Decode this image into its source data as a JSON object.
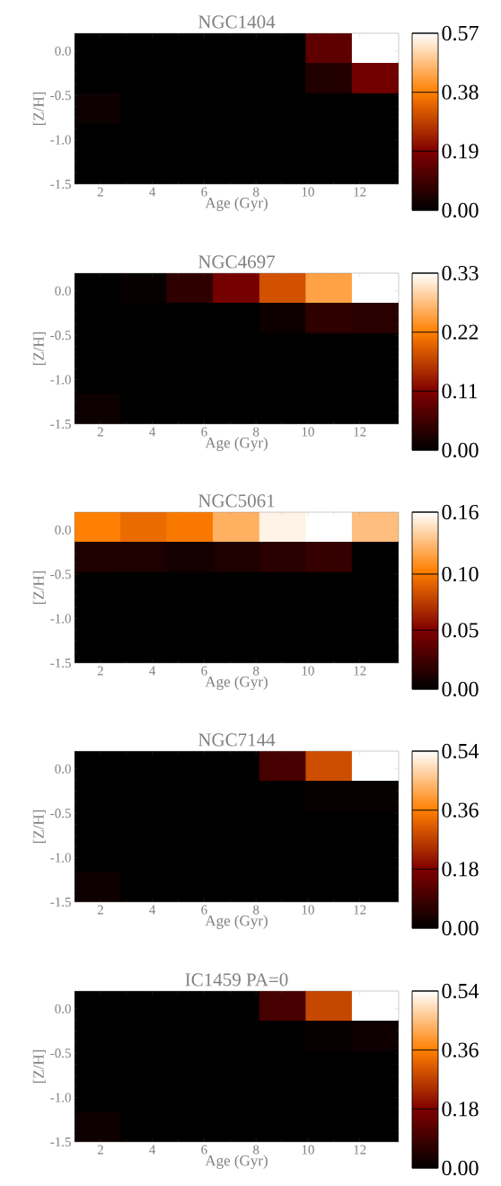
{
  "chart_data": [
    {
      "type": "heatmap",
      "title": "NGC1404",
      "xlabel": "Age (Gyr)",
      "ylabel": "[Z/H]",
      "x": [
        1.89,
        3.68,
        5.46,
        7.25,
        9.04,
        10.82,
        12.61
      ],
      "y": [
        0.03,
        -0.31,
        -0.65,
        -0.99,
        -1.33
      ],
      "xlim": [
        1,
        13.5
      ],
      "xticks": [
        2,
        4,
        6,
        8,
        10,
        12
      ],
      "ylim": [
        -1.5,
        0.2
      ],
      "yticks": [
        {
          "value": 0,
          "label": "0.0"
        },
        {
          "value": -0.5,
          "label": "-0.5"
        },
        {
          "value": -1,
          "label": "-1.0"
        },
        {
          "value": -1.5,
          "label": "-1.5"
        }
      ],
      "cells": [
        [
          0,
          0,
          0,
          0,
          0,
          0.14,
          0.57
        ],
        [
          0,
          0,
          0,
          0,
          0,
          0.05,
          0.17
        ],
        [
          0.02,
          0,
          0,
          0,
          0,
          0,
          0
        ],
        [
          0,
          0,
          0,
          0,
          0,
          0,
          0
        ],
        [
          0,
          0,
          0,
          0,
          0,
          0,
          0
        ]
      ],
      "clim": [
        0,
        0.57
      ],
      "cticks": [
        {
          "value": 0,
          "label": "0.00"
        },
        {
          "value": 0.19,
          "label": "0.19"
        },
        {
          "value": 0.38,
          "label": "0.38"
        },
        {
          "value": 0.57,
          "label": "0.57"
        }
      ]
    },
    {
      "type": "heatmap",
      "title": "NGC4697",
      "xlabel": "Age (Gyr)",
      "ylabel": "[Z/H]",
      "x": [
        1.89,
        3.68,
        5.46,
        7.25,
        9.04,
        10.82,
        12.61
      ],
      "y": [
        0.03,
        -0.31,
        -0.65,
        -0.99,
        -1.33
      ],
      "xlim": [
        1,
        13.5
      ],
      "xticks": [
        2,
        4,
        6,
        8,
        10,
        12
      ],
      "ylim": [
        -1.5,
        0.2
      ],
      "yticks": [
        {
          "value": 0,
          "label": "0.0"
        },
        {
          "value": -0.5,
          "label": "-0.5"
        },
        {
          "value": -1,
          "label": "-1.0"
        },
        {
          "value": -1.5,
          "label": "-1.5"
        }
      ],
      "cells": [
        [
          0,
          0.005,
          0.04,
          0.1,
          0.18,
          0.25,
          0.33
        ],
        [
          0,
          0,
          0,
          0,
          0.01,
          0.04,
          0.035
        ],
        [
          0,
          0,
          0,
          0,
          0,
          0,
          0
        ],
        [
          0,
          0,
          0,
          0,
          0,
          0,
          0
        ],
        [
          0.01,
          0,
          0,
          0,
          0,
          0,
          0
        ]
      ],
      "clim": [
        0,
        0.33
      ],
      "cticks": [
        {
          "value": 0,
          "label": "0.00"
        },
        {
          "value": 0.11,
          "label": "0.11"
        },
        {
          "value": 0.22,
          "label": "0.22"
        },
        {
          "value": 0.33,
          "label": "0.33"
        }
      ]
    },
    {
      "type": "heatmap",
      "title": "NGC5061",
      "xlabel": "Age (Gyr)",
      "ylabel": "[Z/H]",
      "x": [
        1.89,
        3.68,
        5.46,
        7.25,
        9.04,
        10.82,
        12.61
      ],
      "y": [
        0.03,
        -0.31,
        -0.65,
        -0.99,
        -1.33
      ],
      "xlim": [
        1,
        13.5
      ],
      "xticks": [
        2,
        4,
        6,
        8,
        10,
        12
      ],
      "ylim": [
        -1.5,
        0.2
      ],
      "yticks": [
        {
          "value": 0,
          "label": "0.0"
        },
        {
          "value": -0.5,
          "label": "-0.5"
        },
        {
          "value": -1,
          "label": "-1.0"
        },
        {
          "value": -1.5,
          "label": "-1.5"
        }
      ],
      "cells": [
        [
          0.107,
          0.098,
          0.104,
          0.127,
          0.155,
          0.16,
          0.133
        ],
        [
          0.013,
          0.012,
          0.008,
          0.012,
          0.017,
          0.022,
          0
        ],
        [
          0,
          0,
          0,
          0,
          0,
          0,
          0
        ],
        [
          0,
          0,
          0,
          0,
          0,
          0,
          0
        ],
        [
          0,
          0,
          0,
          0,
          0,
          0,
          0
        ]
      ],
      "clim": [
        0,
        0.16
      ],
      "cticks": [
        {
          "value": 0,
          "label": "0.00"
        },
        {
          "value": 0.0533,
          "label": "0.05"
        },
        {
          "value": 0.104,
          "label": "0.10"
        },
        {
          "value": 0.16,
          "label": "0.16"
        }
      ]
    },
    {
      "type": "heatmap",
      "title": "NGC7144",
      "xlabel": "Age (Gyr)",
      "ylabel": "[Z/H]",
      "x": [
        1.89,
        3.68,
        5.46,
        7.25,
        9.04,
        10.82,
        12.61
      ],
      "y": [
        0.03,
        -0.31,
        -0.65,
        -0.99,
        -1.33
      ],
      "xlim": [
        1,
        13.5
      ],
      "xticks": [
        2,
        4,
        6,
        8,
        10,
        12
      ],
      "ylim": [
        -1.5,
        0.2
      ],
      "yticks": [
        {
          "value": 0,
          "label": "0.0"
        },
        {
          "value": -0.5,
          "label": "-0.5"
        },
        {
          "value": -1,
          "label": "-1.0"
        },
        {
          "value": -1.5,
          "label": "-1.5"
        }
      ],
      "cells": [
        [
          0,
          0,
          0,
          0,
          0.1,
          0.29,
          0.54
        ],
        [
          0,
          0,
          0,
          0,
          0,
          0.01,
          0.01
        ],
        [
          0,
          0,
          0,
          0,
          0,
          0,
          0
        ],
        [
          0,
          0,
          0,
          0,
          0,
          0,
          0
        ],
        [
          0.02,
          0,
          0,
          0,
          0,
          0,
          0
        ]
      ],
      "clim": [
        0,
        0.54
      ],
      "cticks": [
        {
          "value": 0,
          "label": "0.00"
        },
        {
          "value": 0.18,
          "label": "0.18"
        },
        {
          "value": 0.36,
          "label": "0.36"
        },
        {
          "value": 0.54,
          "label": "0.54"
        }
      ]
    },
    {
      "type": "heatmap",
      "title": "IC1459 PA=0",
      "xlabel": "Age (Gyr)",
      "ylabel": "[Z/H]",
      "x": [
        1.89,
        3.68,
        5.46,
        7.25,
        9.04,
        10.82,
        12.61
      ],
      "y": [
        0.03,
        -0.31,
        -0.65,
        -0.99,
        -1.33
      ],
      "xlim": [
        1,
        13.5
      ],
      "xticks": [
        2,
        4,
        6,
        8,
        10,
        12
      ],
      "ylim": [
        -1.5,
        0.2
      ],
      "yticks": [
        {
          "value": 0,
          "label": "0.0"
        },
        {
          "value": -0.5,
          "label": "-0.5"
        },
        {
          "value": -1,
          "label": "-1.0"
        },
        {
          "value": -1.5,
          "label": "-1.5"
        }
      ],
      "cells": [
        [
          0,
          0,
          0,
          0,
          0.1,
          0.28,
          0.54
        ],
        [
          0,
          0,
          0,
          0,
          0,
          0.01,
          0.02
        ],
        [
          0,
          0,
          0,
          0,
          0,
          0,
          0
        ],
        [
          0,
          0,
          0,
          0,
          0,
          0,
          0
        ],
        [
          0.02,
          0,
          0,
          0,
          0,
          0,
          0
        ]
      ],
      "clim": [
        0,
        0.54
      ],
      "cticks": [
        {
          "value": 0,
          "label": "0.00"
        },
        {
          "value": 0.18,
          "label": "0.18"
        },
        {
          "value": 0.36,
          "label": "0.36"
        },
        {
          "value": 0.54,
          "label": "0.54"
        }
      ]
    }
  ]
}
